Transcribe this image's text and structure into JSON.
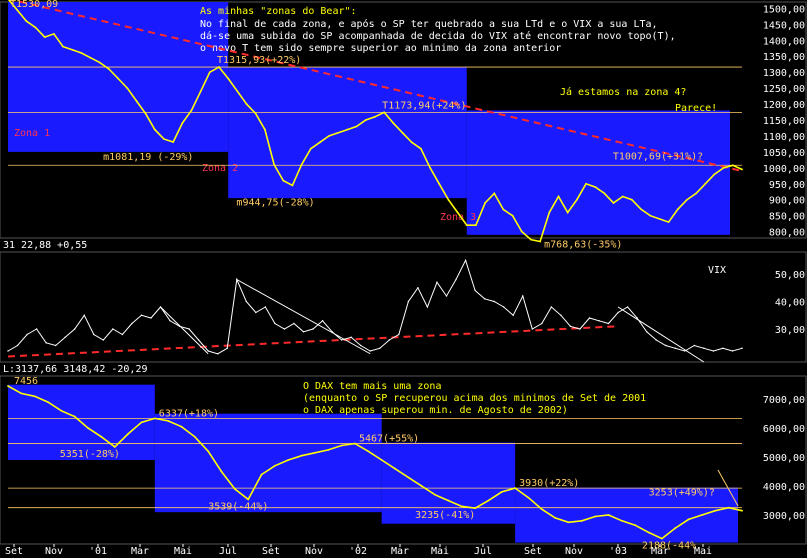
{
  "colors": {
    "background": "#000000",
    "panel_border": "#555555",
    "zone_fill": "#1a1aff",
    "price_line": "#ffff00",
    "vix_line": "#ffffff",
    "trend_dash": "#ff2a2a",
    "annotation": "#ffcc66",
    "zone_label": "#ff3355",
    "header_text": "#ffffff",
    "title_text": "#ffff00",
    "axis_text": "#ffffff"
  },
  "header": {
    "title": "As minhas \"zonas do Bear\":",
    "lines": [
      "No final de cada zona, e após o SP ter quebrado a sua LTd e o VIX a sua LTa,",
      "dá-se uma subida do SP acompanhada de decida do VIX até encontrar novo topo(T),",
      "o novo T tem sido sempre superior ao minimo da zona anterior"
    ],
    "question": "Já estamos na zona 4?",
    "answer": "Parece!"
  },
  "panel_headers": {
    "vix": "31 22,88 +0,55",
    "vix_name": "VIX",
    "dax": "L:3137,66 3148,42 -20,29"
  },
  "dax_text": {
    "title": "O DAX tem mais uma zona",
    "line1": "(enquanto o SP recuperou acima dos minimos de Set de 2001",
    "line2": " o DAX apenas superou min. de Agosto de 2002)"
  },
  "chart_data": [
    {
      "type": "line",
      "series": [
        {
          "values": [
            1530,
            1495,
            1460,
            1440,
            1410,
            1420,
            1380,
            1370,
            1360,
            1345,
            1330,
            1310,
            1280,
            1250,
            1210,
            1170,
            1120,
            1090,
            1081,
            1140,
            1180,
            1240,
            1300,
            1316,
            1280,
            1240,
            1200,
            1170,
            1120,
            1010,
            960,
            945,
            1010,
            1060,
            1080,
            1100,
            1110,
            1120,
            1130,
            1150,
            1160,
            1174,
            1140,
            1110,
            1080,
            1060,
            1000,
            950,
            900,
            860,
            820,
            820,
            890,
            920,
            869,
            850,
            800,
            775,
            769,
            860,
            910,
            860,
            900,
            950,
            940,
            920,
            890,
            910,
            900,
            870,
            850,
            840,
            830,
            870,
            900,
            920,
            950,
            980,
            1000,
            1008,
            995
          ]
        }
      ],
      "x_tick_labels": [
        "Set",
        "Nov",
        "'01",
        "Mar",
        "Mai",
        "Jul",
        "Set",
        "Nov",
        "'02",
        "Mar",
        "Mai",
        "Jul",
        "Set",
        "Nov",
        "'03",
        "Mar",
        "Mai"
      ],
      "y_tick_labels": [
        "1500,00",
        "1450,00",
        "1400,00",
        "1350,00",
        "1300,00",
        "1250,00",
        "1200,00",
        "1150,00",
        "1100,00",
        "1050,00",
        "1000,00",
        "950,00",
        "900,00",
        "850,00",
        "800,00"
      ],
      "ylim": [
        780,
        1520
      ],
      "annotations": [
        {
          "text": "T1530,09",
          "index": 0,
          "value": 1530
        },
        {
          "text": "T1315,93(+22%)",
          "index": 23,
          "value": 1316
        },
        {
          "text": "m1081,19 (-29%)",
          "index": 18,
          "value": 1081
        },
        {
          "text": "T1173,94(+24%)",
          "index": 41,
          "value": 1174
        },
        {
          "text": "m944,75(-28%)",
          "index": 31,
          "value": 945
        },
        {
          "text": "m768,63(-35%)",
          "index": 58,
          "value": 769
        },
        {
          "text": "T1007,69(+31%)?",
          "index": 79,
          "value": 1008
        }
      ],
      "zones": [
        {
          "label": "Zona 1",
          "start_index": 0,
          "end_index": 24,
          "low": 1050,
          "high": 1520
        },
        {
          "label": "Zona 2",
          "start_index": 24,
          "end_index": 50,
          "low": 905,
          "high": 1315
        },
        {
          "label": "Zona 3",
          "start_index": 50,
          "end_index": 90,
          "low": 790,
          "high": 1180
        }
      ],
      "horizontal_levels": [
        1316,
        1174,
        1008
      ]
    },
    {
      "type": "line",
      "series": [
        {
          "values": [
            22,
            24,
            28,
            30,
            25,
            24,
            27,
            30,
            35,
            28,
            26,
            30,
            28,
            32,
            35,
            34,
            38,
            33,
            31,
            30,
            26,
            22,
            21,
            23,
            48,
            40,
            36,
            38,
            32,
            30,
            32,
            29,
            30,
            33,
            29,
            26,
            27,
            24,
            22,
            23,
            26,
            28,
            40,
            45,
            38,
            47,
            42,
            48,
            55,
            44,
            41,
            40,
            38,
            35,
            42,
            30,
            32,
            38,
            35,
            31,
            30,
            34,
            33,
            32,
            36,
            38,
            34,
            29,
            26,
            24,
            23,
            22,
            24,
            23,
            22,
            23,
            22,
            23
          ]
        }
      ],
      "y_tick_labels": [
        "50,00",
        "40,00",
        "30,00"
      ],
      "ylim": [
        18,
        58
      ],
      "current_value": "22,88",
      "change": "+0,55"
    },
    {
      "type": "line",
      "series": [
        {
          "values": [
            7456,
            7200,
            7100,
            6900,
            6600,
            6400,
            6000,
            5700,
            5351,
            5800,
            6200,
            6337,
            6250,
            6050,
            5700,
            5200,
            4500,
            3900,
            3539,
            4400,
            4700,
            4900,
            5050,
            5150,
            5250,
            5400,
            5467,
            5200,
            4900,
            4600,
            4300,
            4000,
            3700,
            3500,
            3300,
            3235,
            3500,
            3800,
            3930,
            3600,
            3200,
            2900,
            2750,
            2800,
            2950,
            3000,
            2800,
            2650,
            2400,
            2188,
            2550,
            2850,
            3000,
            3150,
            3253,
            3150
          ]
        }
      ],
      "y_tick_labels": [
        "7000,00",
        "6000,00",
        "5000,00",
        "4000,00",
        "3000,00"
      ],
      "ylim": [
        2000,
        7800
      ],
      "annotations": [
        {
          "text": "7456",
          "index": 0,
          "value": 7456
        },
        {
          "text": "5351(-28%)",
          "index": 8,
          "value": 5351
        },
        {
          "text": "6337(+18%)",
          "index": 11,
          "value": 6337
        },
        {
          "text": "3539(-44%)",
          "index": 18,
          "value": 3539
        },
        {
          "text": "5467(+55%)",
          "index": 26,
          "value": 5467
        },
        {
          "text": "3235(-41%)",
          "index": 35,
          "value": 3235
        },
        {
          "text": "3930(+22%)",
          "index": 38,
          "value": 3930
        },
        {
          "text": "2188(-44%",
          "index": 49,
          "value": 2188
        },
        {
          "text": "3253(+49%)?",
          "index": 54,
          "value": 3253
        }
      ],
      "horizontal_levels": [
        6337,
        5467,
        3930,
        3253
      ]
    }
  ]
}
